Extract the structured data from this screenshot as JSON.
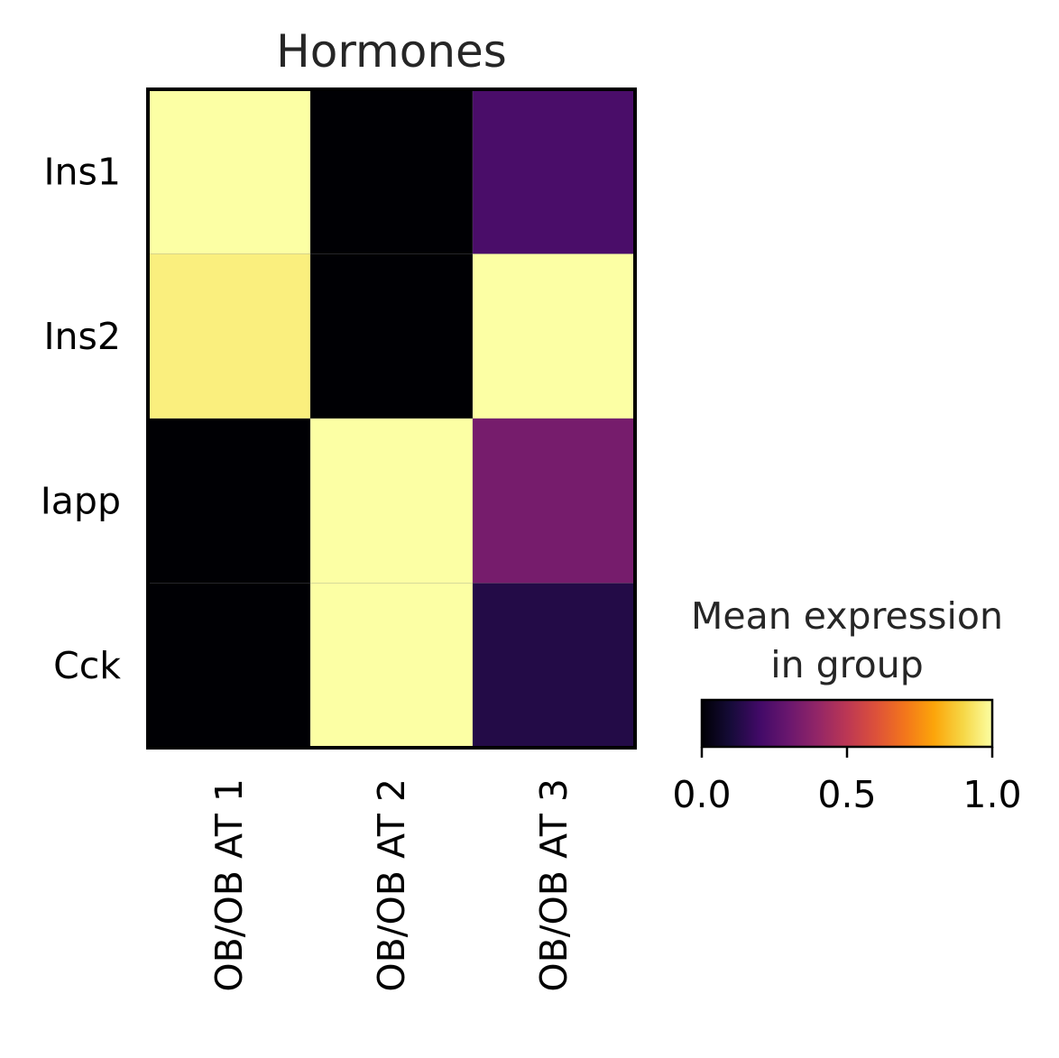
{
  "chart_data": {
    "type": "heatmap",
    "title": "Hormones",
    "rows": [
      "Ins1",
      "Ins2",
      "Iapp",
      "Cck"
    ],
    "columns": [
      "OB/OB AT 1",
      "OB/OB AT 2",
      "OB/OB AT 3"
    ],
    "values": [
      [
        1.0,
        0.0,
        0.22
      ],
      [
        0.96,
        0.0,
        1.0
      ],
      [
        0.0,
        1.0,
        0.33
      ],
      [
        0.0,
        1.0,
        0.13
      ]
    ],
    "colormap": "inferno",
    "colorbar": {
      "title_line1": "Mean expression",
      "title_line2": "in group",
      "range": [
        0,
        1
      ],
      "ticks": [
        "0.0",
        "0.5",
        "1.0"
      ]
    },
    "colors": {
      "frame": "#000000",
      "title_text": "#262626",
      "label_text": "#000000"
    }
  }
}
